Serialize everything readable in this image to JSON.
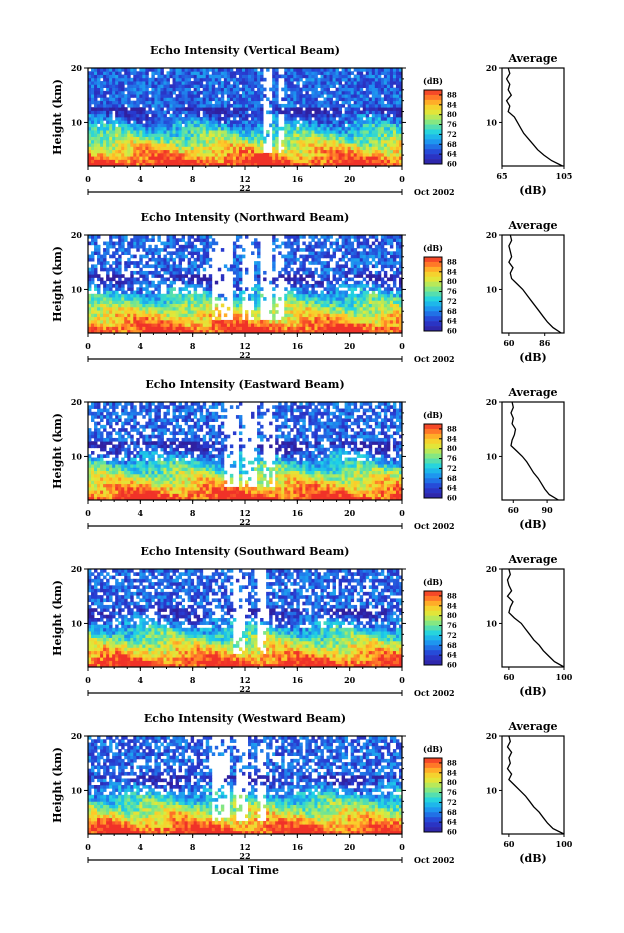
{
  "chart_data": [
    {
      "type": "heatmap",
      "title": "Echo Intensity (Vertical Beam)",
      "ylabel": "Height (km)",
      "yticks": [
        "20",
        "10"
      ],
      "ylim": [
        2,
        20
      ],
      "xticks": [
        "0",
        "4",
        "8",
        "12",
        "16",
        "20",
        "0"
      ],
      "xlim": [
        0,
        24
      ],
      "date_label": "22",
      "date_suffix": "Oct 2002",
      "colorbar": {
        "label": "(dB)",
        "ticks": [
          "88",
          "84",
          "80",
          "76",
          "72",
          "68",
          "64",
          "60"
        ],
        "range": [
          60,
          90
        ]
      },
      "profile": {
        "title": "Average",
        "xlabel": "(dB)",
        "xticks": [
          "65",
          "105"
        ],
        "xlim": [
          65,
          105
        ],
        "yticks": [
          "20",
          "10"
        ],
        "ylim": [
          2,
          20
        ],
        "heights": [
          2,
          3,
          4,
          5,
          6,
          7,
          8,
          9,
          10,
          11,
          12,
          13,
          14,
          15,
          16,
          17,
          18,
          19,
          20
        ],
        "values": [
          104,
          97,
          92,
          88,
          85,
          82,
          79,
          77,
          75,
          73,
          69,
          70,
          68,
          71,
          69,
          70,
          68,
          70,
          69
        ]
      },
      "gaps": [
        [
          13.5,
          14.1
        ],
        [
          14.5,
          14.9
        ]
      ]
    },
    {
      "type": "heatmap",
      "title": "Echo Intensity (Northward Beam)",
      "ylabel": "Height (km)",
      "yticks": [
        "20",
        "10"
      ],
      "ylim": [
        2,
        20
      ],
      "xticks": [
        "0",
        "4",
        "8",
        "12",
        "16",
        "20",
        "0"
      ],
      "xlim": [
        0,
        24
      ],
      "date_label": "22",
      "date_suffix": "Oct 2002",
      "colorbar": {
        "label": "(dB)",
        "ticks": [
          "88",
          "84",
          "80",
          "76",
          "72",
          "68",
          "64",
          "60"
        ],
        "range": [
          60,
          90
        ]
      },
      "profile": {
        "title": "Average",
        "xlabel": "(dB)",
        "xticks": [
          "60",
          "86"
        ],
        "xlim": [
          55,
          100
        ],
        "yticks": [
          "20",
          "10"
        ],
        "ylim": [
          2,
          20
        ],
        "heights": [
          2,
          3,
          4,
          5,
          6,
          7,
          8,
          9,
          10,
          11,
          12,
          13,
          14,
          15,
          16,
          17,
          18,
          19,
          20
        ],
        "values": [
          98,
          92,
          88,
          85,
          82,
          79,
          76,
          73,
          70,
          66,
          62,
          61,
          63,
          60,
          62,
          61,
          60,
          62,
          61
        ]
      },
      "gaps": [
        [
          9.5,
          11.0
        ],
        [
          11.8,
          12.8
        ],
        [
          13.2,
          14.0
        ],
        [
          14.3,
          15.0
        ]
      ]
    },
    {
      "type": "heatmap",
      "title": "Echo Intensity (Eastward Beam)",
      "ylabel": "Height (km)",
      "yticks": [
        "20",
        "10"
      ],
      "ylim": [
        2,
        20
      ],
      "xticks": [
        "0",
        "4",
        "8",
        "12",
        "16",
        "20",
        "0"
      ],
      "xlim": [
        0,
        24
      ],
      "date_label": "22",
      "date_suffix": "Oct 2002",
      "colorbar": {
        "label": "(dB)",
        "ticks": [
          "88",
          "84",
          "80",
          "76",
          "72",
          "68",
          "64",
          "60"
        ],
        "range": [
          60,
          90
        ]
      },
      "profile": {
        "title": "Average",
        "xlabel": "(dB)",
        "xticks": [
          "60",
          "90"
        ],
        "xlim": [
          50,
          105
        ],
        "yticks": [
          "20",
          "10"
        ],
        "ylim": [
          2,
          20
        ],
        "heights": [
          2,
          3,
          4,
          5,
          6,
          7,
          8,
          9,
          10,
          11,
          12,
          13,
          14,
          15,
          16,
          17,
          18,
          19,
          20
        ],
        "values": [
          100,
          92,
          88,
          85,
          82,
          78,
          75,
          72,
          68,
          63,
          58,
          59,
          61,
          62,
          59,
          60,
          58,
          60,
          59
        ]
      },
      "gaps": [
        [
          10.5,
          11.5
        ],
        [
          11.8,
          13.0
        ],
        [
          13.3,
          14.2
        ]
      ]
    },
    {
      "type": "heatmap",
      "title": "Echo Intensity (Southward Beam)",
      "ylabel": "Height (km)",
      "yticks": [
        "20",
        "10"
      ],
      "ylim": [
        2,
        20
      ],
      "xticks": [
        "0",
        "4",
        "8",
        "12",
        "16",
        "20",
        "0"
      ],
      "xlim": [
        0,
        24
      ],
      "date_label": "22",
      "date_suffix": "Oct 2002",
      "colorbar": {
        "label": "(dB)",
        "ticks": [
          "88",
          "84",
          "80",
          "76",
          "72",
          "68",
          "64",
          "60"
        ],
        "range": [
          60,
          90
        ]
      },
      "profile": {
        "title": "Average",
        "xlabel": "(dB)",
        "xticks": [
          "60",
          "100"
        ],
        "xlim": [
          55,
          100
        ],
        "yticks": [
          "20",
          "10"
        ],
        "ylim": [
          2,
          20
        ],
        "heights": [
          2,
          3,
          4,
          5,
          6,
          7,
          8,
          9,
          10,
          11,
          12,
          13,
          14,
          15,
          16,
          17,
          18,
          19,
          20
        ],
        "values": [
          100,
          93,
          89,
          85,
          82,
          78,
          75,
          72,
          69,
          64,
          60,
          61,
          63,
          59,
          62,
          60,
          59,
          61,
          60
        ]
      },
      "gaps": [
        [
          11.0,
          12.0
        ],
        [
          13.0,
          13.6
        ]
      ]
    },
    {
      "type": "heatmap",
      "title": "Echo Intensity (Westward Beam)",
      "ylabel": "Height (km)",
      "yticks": [
        "20",
        "10"
      ],
      "ylim": [
        2,
        20
      ],
      "xticks": [
        "0",
        "4",
        "8",
        "12",
        "16",
        "20",
        "0"
      ],
      "xlim": [
        0,
        24
      ],
      "date_label": "22",
      "date_suffix": "Oct 2002",
      "xlabel": "Local Time",
      "colorbar": {
        "label": "(dB)",
        "ticks": [
          "88",
          "84",
          "80",
          "76",
          "72",
          "68",
          "64",
          "60"
        ],
        "range": [
          60,
          90
        ]
      },
      "profile": {
        "title": "Average",
        "xlabel": "(dB)",
        "xticks": [
          "60",
          "100"
        ],
        "xlim": [
          55,
          100
        ],
        "yticks": [
          "20",
          "10"
        ],
        "ylim": [
          2,
          20
        ],
        "heights": [
          2,
          3,
          4,
          5,
          6,
          7,
          8,
          9,
          10,
          11,
          12,
          13,
          14,
          15,
          16,
          17,
          18,
          19,
          20
        ],
        "values": [
          100,
          92,
          88,
          85,
          82,
          78,
          75,
          72,
          68,
          64,
          60,
          62,
          59,
          61,
          60,
          62,
          59,
          61,
          60
        ]
      },
      "gaps": [
        [
          9.5,
          10.8
        ],
        [
          11.2,
          12.2
        ],
        [
          13.0,
          13.6
        ]
      ]
    }
  ]
}
